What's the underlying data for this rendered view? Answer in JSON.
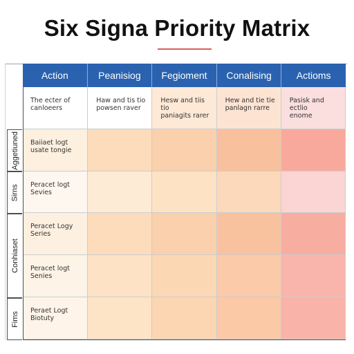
{
  "title": "Six Signa Priority Matrix",
  "accent_color": "#e05b55",
  "header_color": "#2a62b0",
  "columns": [
    "Action",
    "Peanisiog",
    "Fegioment",
    "Conalising",
    "Actioms"
  ],
  "row_labels": [
    "Aggetiuned",
    "Sirns",
    "Conhiaset",
    "Fims"
  ],
  "rows": [
    [
      "The ecter of\ncanloeers",
      "Haw and tis tio\npowsen raver",
      "Hesw and tiis tio\npaniagits rarer",
      "Hew and tie tie\npanlagn rarre",
      "Pasisk and ectlio\nenome"
    ],
    [
      "Baiiaet logt\nusate tongie",
      "",
      "",
      "",
      ""
    ],
    [
      "Peracet logt\nSevies",
      "",
      "",
      "",
      ""
    ],
    [
      "Peracet Logy\nSeries",
      "",
      "",
      "",
      ""
    ],
    [
      "Peracet logt\nSenies",
      "",
      "",
      "",
      ""
    ],
    [
      "Peraet Logt\nBiotuty",
      "",
      "",
      "",
      ""
    ]
  ],
  "cell_colors": [
    [
      "#ffffff",
      "#ffffff",
      "#fde9d6",
      "#fde4d2",
      "#fbdede"
    ],
    [
      "#fdf0df",
      "#fcdcbb",
      "#fbd0ac",
      "#f9c09e",
      "#f8a99b"
    ],
    [
      "#fef7ef",
      "#fdebd6",
      "#fde2c3",
      "#fcd9ba",
      "#fad5d3"
    ],
    [
      "#fdf0e0",
      "#fcdcbb",
      "#fbd0ac",
      "#f9c29f",
      "#f8ada1"
    ],
    [
      "#fdf3e6",
      "#fde2c6",
      "#fcd7b4",
      "#fbcaa8",
      "#f9b5ac"
    ],
    [
      "#fef4e9",
      "#fde4c7",
      "#fcd6b2",
      "#fbc9a6",
      "#f9b3a8"
    ]
  ]
}
